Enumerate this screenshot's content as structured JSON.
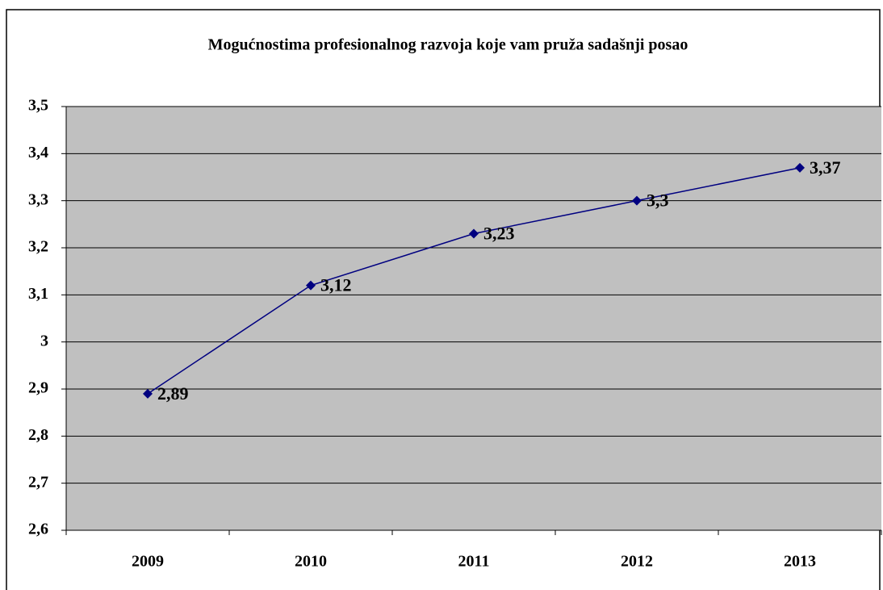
{
  "chart_data": {
    "type": "line",
    "title": "Mogućnostima profesionalnog razvoja koje vam pruža sadašnji posao",
    "categories": [
      "2009",
      "2010",
      "2011",
      "2012",
      "2013"
    ],
    "series": [
      {
        "name": "Mogućnostima profesionalnog razvoja",
        "color": "#000080",
        "values": [
          2.89,
          3.12,
          3.23,
          3.3,
          3.37
        ],
        "value_labels": [
          "2,89",
          "3,12",
          "3,23",
          "3,3",
          "3,37"
        ]
      }
    ],
    "ylim": [
      2.6,
      3.5
    ],
    "yticks": [
      {
        "value": 2.6,
        "label": "2,6"
      },
      {
        "value": 2.7,
        "label": "2,7"
      },
      {
        "value": 2.8,
        "label": "2,8"
      },
      {
        "value": 2.9,
        "label": "2,9"
      },
      3,
      {
        "value": 3.1,
        "label": "3,1"
      },
      {
        "value": 3.2,
        "label": "3,2"
      },
      {
        "value": 3.3,
        "label": "3,3"
      },
      {
        "value": 3.4,
        "label": "3,4"
      },
      {
        "value": 3.5,
        "label": "3,5"
      }
    ],
    "grid": true,
    "plot_background": "#c0c0c0"
  }
}
